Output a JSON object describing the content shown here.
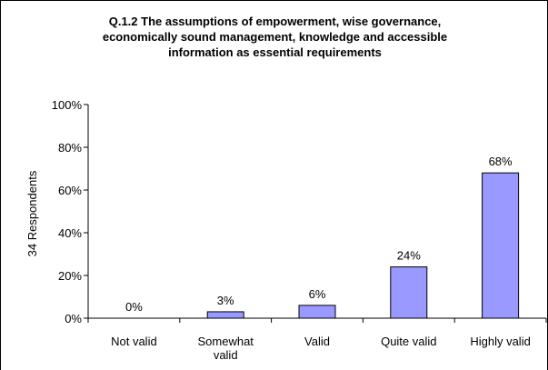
{
  "chart_data": {
    "type": "bar",
    "title_lines": [
      "Q.1.2 The assumptions of empowerment, wise governance,",
      "economically sound management, knowledge and accessible",
      "information as essential requirements"
    ],
    "xlabel": "",
    "ylabel": "34 Respondents",
    "ylim": [
      0,
      100
    ],
    "yticks": [
      0,
      20,
      40,
      60,
      80,
      100
    ],
    "ytick_labels": [
      "0%",
      "20%",
      "40%",
      "60%",
      "80%",
      "100%"
    ],
    "grid": false,
    "legend": "none",
    "categories": [
      [
        "Not valid"
      ],
      [
        "Somewhat",
        "valid"
      ],
      [
        "Valid"
      ],
      [
        "Quite valid"
      ],
      [
        "Highly valid"
      ]
    ],
    "values": [
      0,
      3,
      6,
      24,
      68
    ],
    "data_labels": [
      "0%",
      "3%",
      "6%",
      "24%",
      "68%"
    ],
    "colors": {
      "bar_fill": "#9999FF",
      "bar_stroke": "#000000",
      "axis": "#000000"
    }
  }
}
